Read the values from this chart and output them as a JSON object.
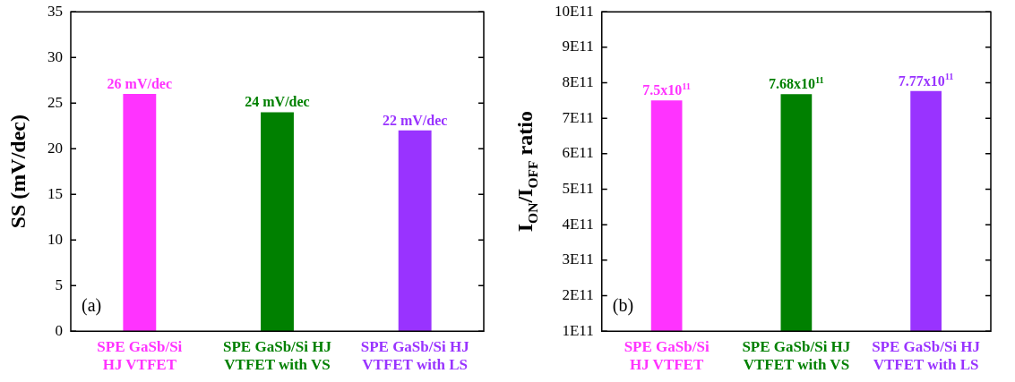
{
  "chart_data": [
    {
      "type": "bar",
      "ylabel": "SS (mV/dec)",
      "categories": [
        "SPE GaSb/Si\nHJ VTFET",
        "SPE GaSb/Si HJ\nVTFET with VS",
        "SPE GaSb/Si HJ\nVTFET with LS"
      ],
      "values": [
        26,
        24,
        22
      ],
      "colors": [
        "#ff33ff",
        "#008000",
        "#9933ff"
      ],
      "value_labels": [
        "26 mV/dec",
        "24 mV/dec",
        "22 mV/dec"
      ],
      "ylim": [
        0,
        35
      ],
      "yticks": [
        0,
        5,
        10,
        15,
        20,
        25,
        30,
        35
      ],
      "grid": false,
      "legend": false,
      "annotations": [
        "(a)"
      ]
    },
    {
      "type": "bar",
      "ylabel": "I$_{ON}$/I$_{OFF}$ ratio",
      "categories": [
        "SPE GaSb/Si\nHJ VTFET",
        "SPE GaSb/Si HJ\nVTFET with VS",
        "SPE GaSb/Si HJ\nVTFET with LS"
      ],
      "values": [
        750000000000,
        768000000000,
        777000000000
      ],
      "colors": [
        "#ff33ff",
        "#008000",
        "#9933ff"
      ],
      "value_labels": [
        "7.5x10$^{11}$",
        "7.68x10$^{11}$",
        "7.77x10$^{11}$"
      ],
      "ylim": [
        100000000000,
        1000000000000
      ],
      "yticks": [
        {
          "value": 100000000000,
          "label": "1E11"
        },
        {
          "value": 200000000000,
          "label": "2E11"
        },
        {
          "value": 300000000000,
          "label": "3E11"
        },
        {
          "value": 400000000000,
          "label": "4E11"
        },
        {
          "value": 500000000000,
          "label": "5E11"
        },
        {
          "value": 600000000000,
          "label": "6E11"
        },
        {
          "value": 700000000000,
          "label": "7E11"
        },
        {
          "value": 800000000000,
          "label": "8E11"
        },
        {
          "value": 900000000000,
          "label": "9E11"
        },
        {
          "value": 1000000000000,
          "label": "10E11"
        }
      ],
      "grid": false,
      "legend": false,
      "annotations": [
        "(b)"
      ]
    }
  ]
}
